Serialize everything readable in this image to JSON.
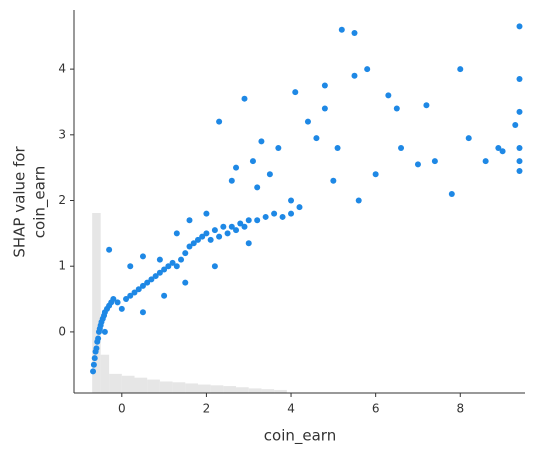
{
  "chart_data": {
    "type": "scatter",
    "xlabel": "coin_earn",
    "ylabel": [
      "SHAP value for",
      "coin_earn"
    ],
    "color": "#1e88e5",
    "x": [
      -0.68,
      -0.66,
      -0.64,
      -0.62,
      -0.6,
      -0.58,
      -0.56,
      -0.54,
      -0.52,
      -0.5,
      -0.48,
      -0.45,
      -0.42,
      -0.4,
      -0.35,
      -0.3,
      -0.25,
      -0.2,
      -0.1,
      0,
      0.1,
      0.2,
      0.3,
      0.4,
      0.5,
      0.6,
      0.7,
      0.8,
      0.9,
      1.0,
      1.1,
      1.2,
      1.3,
      1.4,
      1.5,
      1.6,
      1.7,
      1.8,
      1.9,
      2.0,
      2.1,
      2.2,
      2.3,
      2.4,
      2.5,
      2.6,
      2.7,
      2.8,
      2.9,
      3.0,
      3.2,
      3.4,
      3.6,
      3.8,
      4.0,
      4.2,
      -0.3,
      0.2,
      0.5,
      0.9,
      1.3,
      1.6,
      2.0,
      2.3,
      2.6,
      2.9,
      3.1,
      3.3,
      3.5,
      3.7,
      4.1,
      4.4,
      4.6,
      4.8,
      5.0,
      5.2,
      5.5,
      5.8,
      6.0,
      6.3,
      6.6,
      7.0,
      7.4,
      7.8,
      8.2,
      8.6,
      9.0,
      9.4,
      9.4,
      9.4,
      9.4,
      9.4,
      9.4,
      5.1,
      5.5,
      4.8,
      6.5,
      3.2,
      2.7,
      1.0,
      -0.4,
      0.5,
      1.5,
      2.2,
      3.0,
      4.0,
      5.6,
      7.2,
      8.0,
      8.9,
      9.3
    ],
    "values": [
      -0.6,
      -0.5,
      -0.4,
      -0.3,
      -0.25,
      -0.15,
      -0.1,
      0,
      0.05,
      0.1,
      0.15,
      0.2,
      0.25,
      0.3,
      0.35,
      0.4,
      0.45,
      0.5,
      0.45,
      0.35,
      0.5,
      0.55,
      0.6,
      0.65,
      0.7,
      0.75,
      0.8,
      0.85,
      0.9,
      0.95,
      1.0,
      1.05,
      1.0,
      1.1,
      1.2,
      1.3,
      1.35,
      1.4,
      1.45,
      1.5,
      1.4,
      1.55,
      1.45,
      1.6,
      1.5,
      1.6,
      1.55,
      1.65,
      1.6,
      1.7,
      1.7,
      1.75,
      1.8,
      1.75,
      1.8,
      1.9,
      1.25,
      1.0,
      1.15,
      1.1,
      1.5,
      1.7,
      1.8,
      3.2,
      2.3,
      3.55,
      2.6,
      2.9,
      2.4,
      2.8,
      3.65,
      3.2,
      2.95,
      3.4,
      2.3,
      4.6,
      3.9,
      4.0,
      2.4,
      3.6,
      2.8,
      2.55,
      2.6,
      2.1,
      2.95,
      2.6,
      2.75,
      4.65,
      3.85,
      3.35,
      2.8,
      2.6,
      2.45,
      2.8,
      4.55,
      3.75,
      3.4,
      2.2,
      2.5,
      0.55,
      0.0,
      0.3,
      0.75,
      1.0,
      1.35,
      2.0,
      2.0,
      3.45,
      4.0,
      2.8,
      3.15
    ],
    "xlim": [
      -1.13,
      9.53
    ],
    "ylim": [
      -0.93,
      4.9
    ],
    "xticks": [
      0,
      2,
      4,
      6,
      8
    ],
    "yticks": [
      0,
      1,
      2,
      3,
      4
    ],
    "grid": false,
    "histogram": {
      "color": "#e6e6e6",
      "bins": [
        -0.7,
        -0.5,
        -0.3,
        0.0,
        0.3,
        0.6,
        0.9,
        1.2,
        1.5,
        1.8,
        2.1,
        2.4,
        2.7,
        3.0,
        3.3,
        3.6,
        3.9
      ],
      "counts": [
        47,
        10,
        5,
        4.5,
        4,
        3.5,
        3,
        2.8,
        2.5,
        2.2,
        2,
        1.8,
        1.5,
        1.2,
        1,
        0.8
      ],
      "ylim": [
        0,
        100
      ]
    }
  }
}
